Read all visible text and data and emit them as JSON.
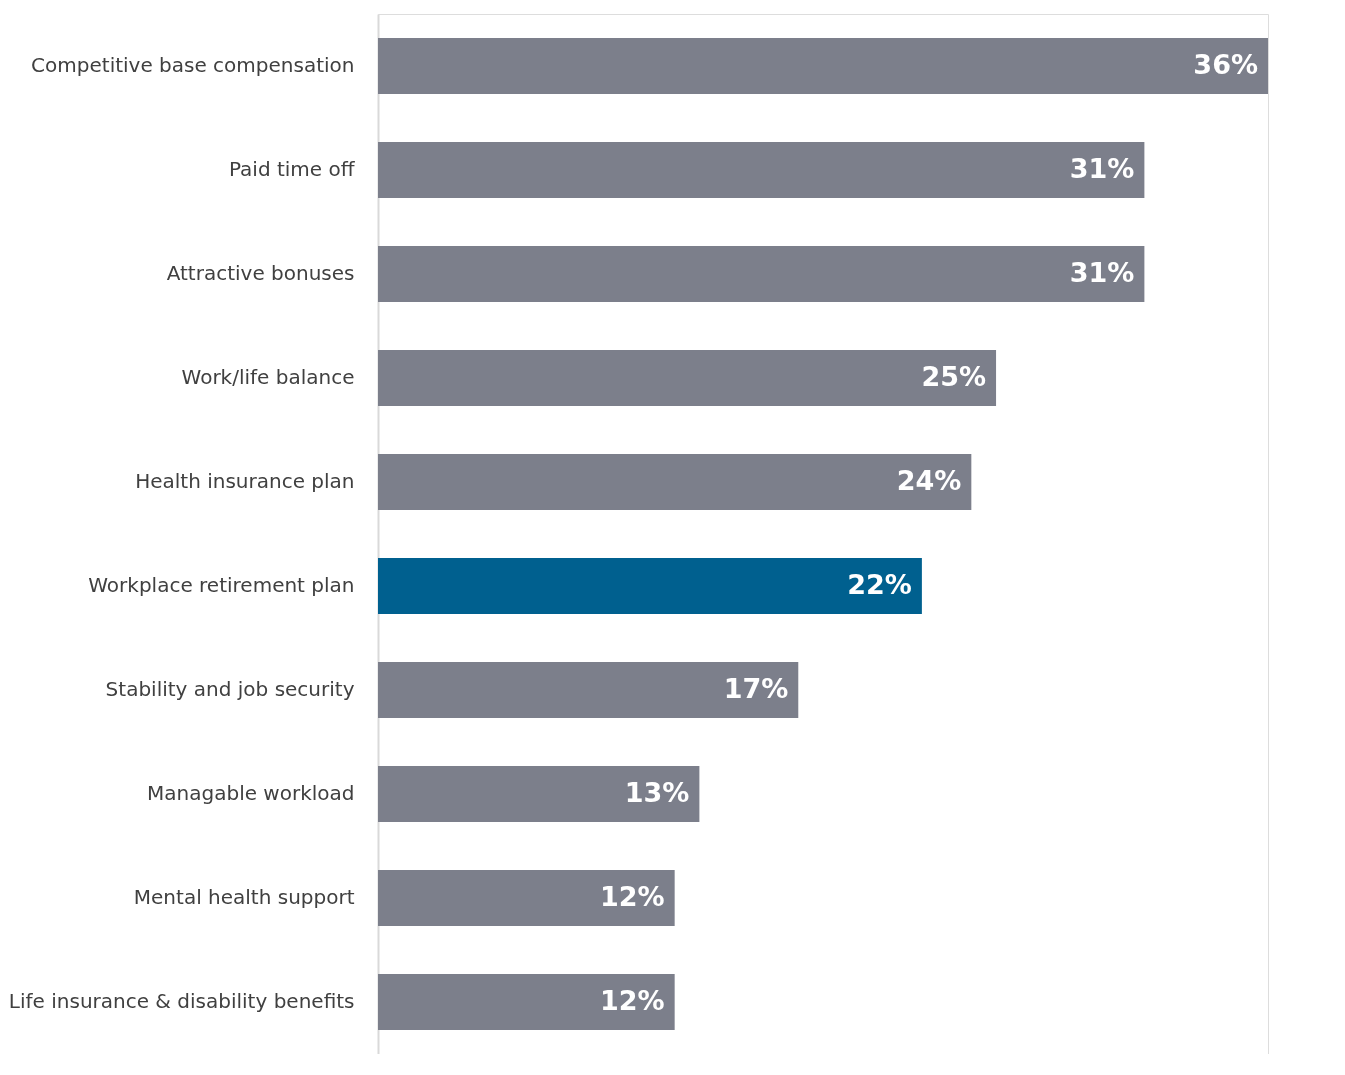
{
  "chart_data": {
    "type": "bar",
    "orientation": "horizontal",
    "categories": [
      "Competitive base compensation",
      "Paid time off",
      "Attractive bonuses",
      "Work/life balance",
      "Health insurance plan",
      "Workplace retirement plan",
      "Stability and job security",
      "Managable workload",
      "Mental health support",
      "Life insurance & disability benefits"
    ],
    "values": [
      36,
      31,
      31,
      25,
      24,
      22,
      17,
      13,
      12,
      12
    ],
    "value_labels": [
      "36%",
      "31%",
      "31%",
      "25%",
      "24%",
      "22%",
      "17%",
      "13%",
      "12%",
      "12%"
    ],
    "colors": [
      "#7c7f8b",
      "#7c7f8b",
      "#7c7f8b",
      "#7c7f8b",
      "#7c7f8b",
      "#00608f",
      "#7c7f8b",
      "#7c7f8b",
      "#7c7f8b",
      "#7c7f8b"
    ]
  }
}
